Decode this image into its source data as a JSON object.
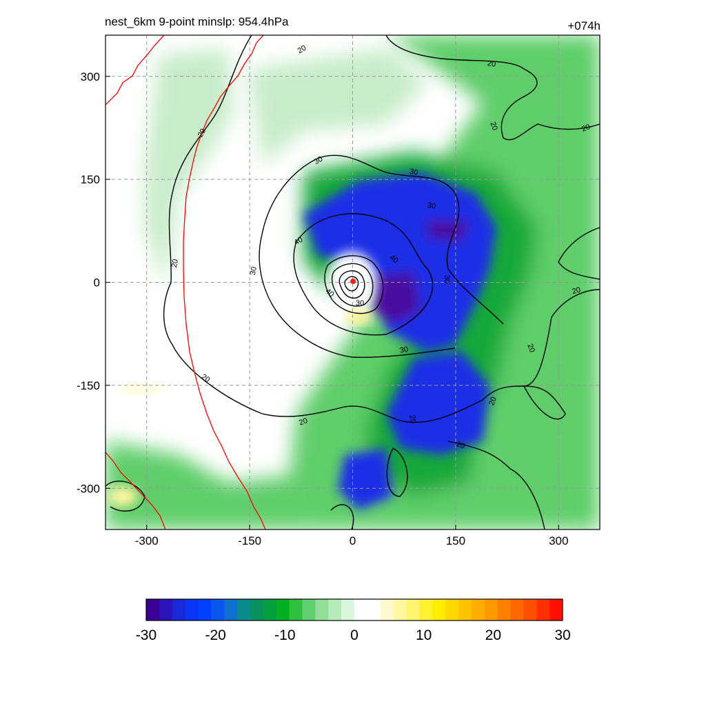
{
  "header": {
    "title": "nest_6km  9-point minslp: 954.4hPa",
    "forecast_hour": "+074h"
  },
  "map": {
    "x_ticks": [
      "-300",
      "-150",
      "0",
      "150",
      "300"
    ],
    "y_ticks": [
      "300",
      "150",
      "0",
      "-150",
      "-300"
    ],
    "contour_labels": [
      "20",
      "20",
      "20",
      "20",
      "20",
      "20",
      "20",
      "20",
      "20",
      "20",
      "20",
      "20",
      "20",
      "30",
      "30",
      "30",
      "30",
      "30",
      "30",
      "30",
      "40",
      "40",
      "40"
    ],
    "center_marker_color": "#ff2020",
    "boundary_line_color": "#ff0000",
    "contour_color": "#000000",
    "grid_color": "#999999"
  },
  "colorbar": {
    "ticks": [
      "-30",
      "-20",
      "-10",
      "0",
      "10",
      "20",
      "30"
    ],
    "colors": [
      "#3b0096",
      "#2a14b8",
      "#1a28d8",
      "#0a35f5",
      "#0040ff",
      "#0858ee",
      "#1070d0",
      "#0a8a8a",
      "#089060",
      "#04a040",
      "#02b020",
      "#30c040",
      "#60d070",
      "#90de98",
      "#b8ebbc",
      "#dcf5de",
      "#ffffff",
      "#ffffff",
      "#fffad0",
      "#fff8a0",
      "#fff570",
      "#fff230",
      "#ffee00",
      "#ffd800",
      "#ffc400",
      "#ffae00",
      "#ff9800",
      "#ff8000",
      "#ff6800",
      "#ff5000",
      "#ff3000",
      "#ff1000"
    ]
  }
}
